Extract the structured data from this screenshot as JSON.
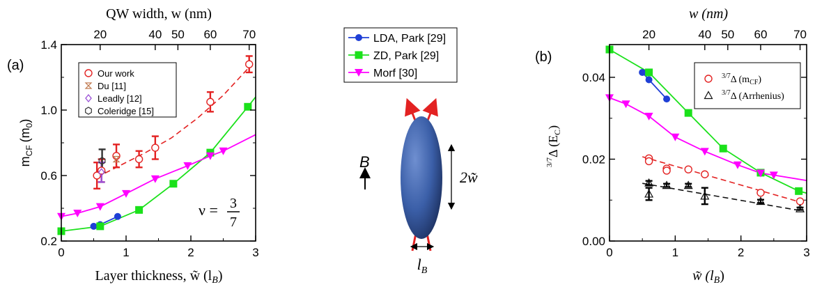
{
  "colors": {
    "lda": "#1f3fd6",
    "zd": "#1be11b",
    "morf": "#ff00ff",
    "ours": "#e32222",
    "du": "#c07a50",
    "leadly": "#9a4fd6",
    "coleridge": "#333333",
    "arrhenius": "#111111",
    "ellipsoid": "#3b5fa8"
  },
  "panel_a": {
    "tag": "(a)",
    "xlabel": "Layer thickness, w̃ (l",
    "xlabel_sub": "B",
    "top_label": "QW width, w (nm)",
    "ylabel": "m",
    "ylabel_sub": "CF",
    "ylabel_unit": "(m",
    "ylabel_unit_sub": "0",
    "nu_label": "ν =",
    "nu_num": "3",
    "nu_den": "7"
  },
  "panel_b": {
    "tag": "(b)",
    "xlabel": "w̃ (l",
    "xlabel_sub": "B",
    "top_label": "w (nm)",
    "ylabel_sup": "3/7",
    "ylabel": "Δ (E",
    "ylabel_sub": "C"
  },
  "middle": {
    "b_label": "B",
    "height_label": "2w̃",
    "width_label": "l",
    "width_label_sub": "B"
  },
  "legend_mid": [
    {
      "label": "LDA, Park [29]",
      "series": "lda"
    },
    {
      "label": "ZD, Park [29]",
      "series": "zd"
    },
    {
      "label": "Morf [30]",
      "series": "morf"
    }
  ],
  "legend_a": [
    {
      "label": "Our work",
      "series": "ours"
    },
    {
      "label": "Du [11]",
      "series": "du"
    },
    {
      "label": "Leadly [12]",
      "series": "leadly"
    },
    {
      "label": "Coleridge [15]",
      "series": "coleridge"
    }
  ],
  "legend_b": [
    {
      "sup": "3/7",
      "label": "Δ (m",
      "sub": "CF",
      "tail": ")",
      "series": "ours"
    },
    {
      "sup": "3/7",
      "label": "Δ (Arrhenius)",
      "sub": "",
      "tail": "",
      "series": "arrhenius"
    }
  ],
  "chart_data": [
    {
      "type": "line",
      "panel": "a",
      "xlim": [
        0,
        3
      ],
      "ylim": [
        0.2,
        1.4
      ],
      "x_ticks": [
        "0",
        "1",
        "2",
        "3"
      ],
      "x_tick_values": [
        0,
        1,
        2,
        3
      ],
      "x_minor_step": 0.5,
      "y_ticks": [
        "0.2",
        "0.6",
        "1.0",
        "1.4"
      ],
      "y_tick_values": [
        0.2,
        0.6,
        1.0,
        1.4
      ],
      "y_minor_step": 0.2,
      "top_ticks": [
        "20",
        "40",
        "50",
        "60",
        "70"
      ],
      "top_tick_x": [
        0.6,
        1.45,
        1.8,
        2.3,
        2.9
      ],
      "series": [
        {
          "name": "LDA, Park [29]",
          "key": "lda",
          "marker": "circle",
          "x": [
            0.5,
            0.6,
            0.87
          ],
          "y": [
            0.29,
            0.3,
            0.35
          ]
        },
        {
          "name": "ZD, Park [29]",
          "key": "zd",
          "marker": "square",
          "x": [
            0,
            0.6,
            1.2,
            1.73,
            2.3,
            2.88
          ],
          "y": [
            0.26,
            0.29,
            0.39,
            0.55,
            0.74,
            1.02
          ],
          "line_x": [
            0,
            0.6,
            1.2,
            1.73,
            2.3,
            2.88,
            3.0
          ],
          "line_y": [
            0.26,
            0.29,
            0.39,
            0.55,
            0.74,
            1.02,
            1.08
          ]
        },
        {
          "name": "Morf [30]",
          "key": "morf",
          "marker": "triangle-down",
          "x": [
            0,
            0.25,
            0.6,
            1.0,
            1.45,
            1.95,
            2.3,
            2.5
          ],
          "y": [
            0.35,
            0.37,
            0.41,
            0.49,
            0.58,
            0.66,
            0.72,
            0.75
          ],
          "line_x": [
            0,
            0.25,
            0.6,
            1.0,
            1.45,
            1.95,
            2.3,
            2.5,
            3.0
          ],
          "line_y": [
            0.35,
            0.37,
            0.41,
            0.49,
            0.58,
            0.66,
            0.72,
            0.75,
            0.85
          ]
        },
        {
          "name": "Our work",
          "key": "ours",
          "marker": "circle-open",
          "x": [
            0.55,
            0.62,
            0.85,
            1.2,
            1.45,
            2.3,
            2.9
          ],
          "y": [
            0.6,
            0.63,
            0.72,
            0.7,
            0.77,
            1.05,
            1.28
          ],
          "err": [
            0.08,
            0.07,
            0.07,
            0.05,
            0.07,
            0.06,
            0.05
          ]
        },
        {
          "name": "Du [11]",
          "key": "du",
          "marker": "hourglass",
          "x": [
            0.85
          ],
          "y": [
            0.7
          ]
        },
        {
          "name": "Leadly [12]",
          "key": "leadly",
          "marker": "diamond",
          "x": [
            0.62
          ],
          "y": [
            0.62
          ],
          "err": [
            0.06
          ]
        },
        {
          "name": "Coleridge [15]",
          "key": "coleridge",
          "marker": "hexagon",
          "x": [
            0.63
          ],
          "y": [
            0.69
          ],
          "err": [
            0.07
          ]
        }
      ],
      "fit": {
        "key": "ours",
        "x": [
          0.55,
          0.9,
          1.3,
          1.7,
          2.1,
          2.5,
          2.92
        ],
        "y": [
          0.59,
          0.66,
          0.74,
          0.83,
          0.95,
          1.09,
          1.27
        ]
      }
    },
    {
      "type": "line",
      "panel": "b",
      "xlim": [
        0,
        3
      ],
      "ylim": [
        0,
        0.048
      ],
      "x_ticks": [
        "0",
        "1",
        "2",
        "3"
      ],
      "x_tick_values": [
        0,
        1,
        2,
        3
      ],
      "x_minor_step": 0.5,
      "y_ticks": [
        "0.00",
        "0.02",
        "0.04"
      ],
      "y_tick_values": [
        0,
        0.02,
        0.04
      ],
      "y_minor_step": 0.01,
      "top_ticks": [
        "20",
        "40",
        "50",
        "60",
        "70"
      ],
      "top_tick_x": [
        0.6,
        1.45,
        1.8,
        2.3,
        2.9
      ],
      "series": [
        {
          "name": "LDA, Park [29]",
          "key": "lda",
          "marker": "circle",
          "x": [
            0.5,
            0.6,
            0.87
          ],
          "y": [
            0.0412,
            0.0394,
            0.0347
          ]
        },
        {
          "name": "ZD, Park [29]",
          "key": "zd",
          "marker": "square",
          "x": [
            0,
            0.6,
            1.2,
            1.73,
            2.3,
            2.88
          ],
          "y": [
            0.0468,
            0.0412,
            0.0313,
            0.0226,
            0.0167,
            0.0122
          ],
          "line_x": [
            0,
            0.6,
            1.2,
            1.73,
            2.3,
            2.88,
            3.0
          ],
          "line_y": [
            0.0468,
            0.0412,
            0.0313,
            0.0226,
            0.0167,
            0.0122,
            0.0117
          ]
        },
        {
          "name": "Morf [30]",
          "key": "morf",
          "marker": "triangle-down",
          "x": [
            0,
            0.25,
            0.6,
            1.0,
            1.45,
            1.95,
            2.3,
            2.5
          ],
          "y": [
            0.035,
            0.0335,
            0.0305,
            0.0254,
            0.0219,
            0.0186,
            0.0166,
            0.0161
          ],
          "line_x": [
            0,
            0.25,
            0.6,
            1.0,
            1.45,
            1.95,
            2.3,
            2.5,
            3.0
          ],
          "line_y": [
            0.035,
            0.0335,
            0.0305,
            0.0254,
            0.0219,
            0.0186,
            0.0166,
            0.0161,
            0.0148
          ]
        },
        {
          "name": "3/7Δ (mCF)",
          "key": "ours",
          "marker": "circle-open",
          "x": [
            0.6,
            0.6,
            0.87,
            0.87,
            1.2,
            1.45,
            2.3,
            2.9
          ],
          "y": [
            0.0202,
            0.0195,
            0.0177,
            0.0172,
            0.0175,
            0.0163,
            0.0118,
            0.0097
          ]
        },
        {
          "name": "3/7Δ (Arrhenius)",
          "key": "arrhenius",
          "marker": "triangle-open",
          "x": [
            0.6,
            0.6,
            0.87,
            1.2,
            1.45,
            2.3,
            2.9
          ],
          "y": [
            0.0142,
            0.0115,
            0.0136,
            0.0136,
            0.011,
            0.0097,
            0.0079
          ],
          "err": [
            0.0005,
            0.0015,
            0.0004,
            0.0004,
            0.002,
            0.0004,
            0.0003
          ]
        }
      ],
      "fits": [
        {
          "key": "ours",
          "x": [
            0.5,
            2.95
          ],
          "y": [
            0.0206,
            0.0093
          ]
        },
        {
          "key": "arrhenius",
          "x": [
            0.5,
            2.95
          ],
          "y": [
            0.0141,
            0.0073
          ]
        }
      ]
    }
  ]
}
